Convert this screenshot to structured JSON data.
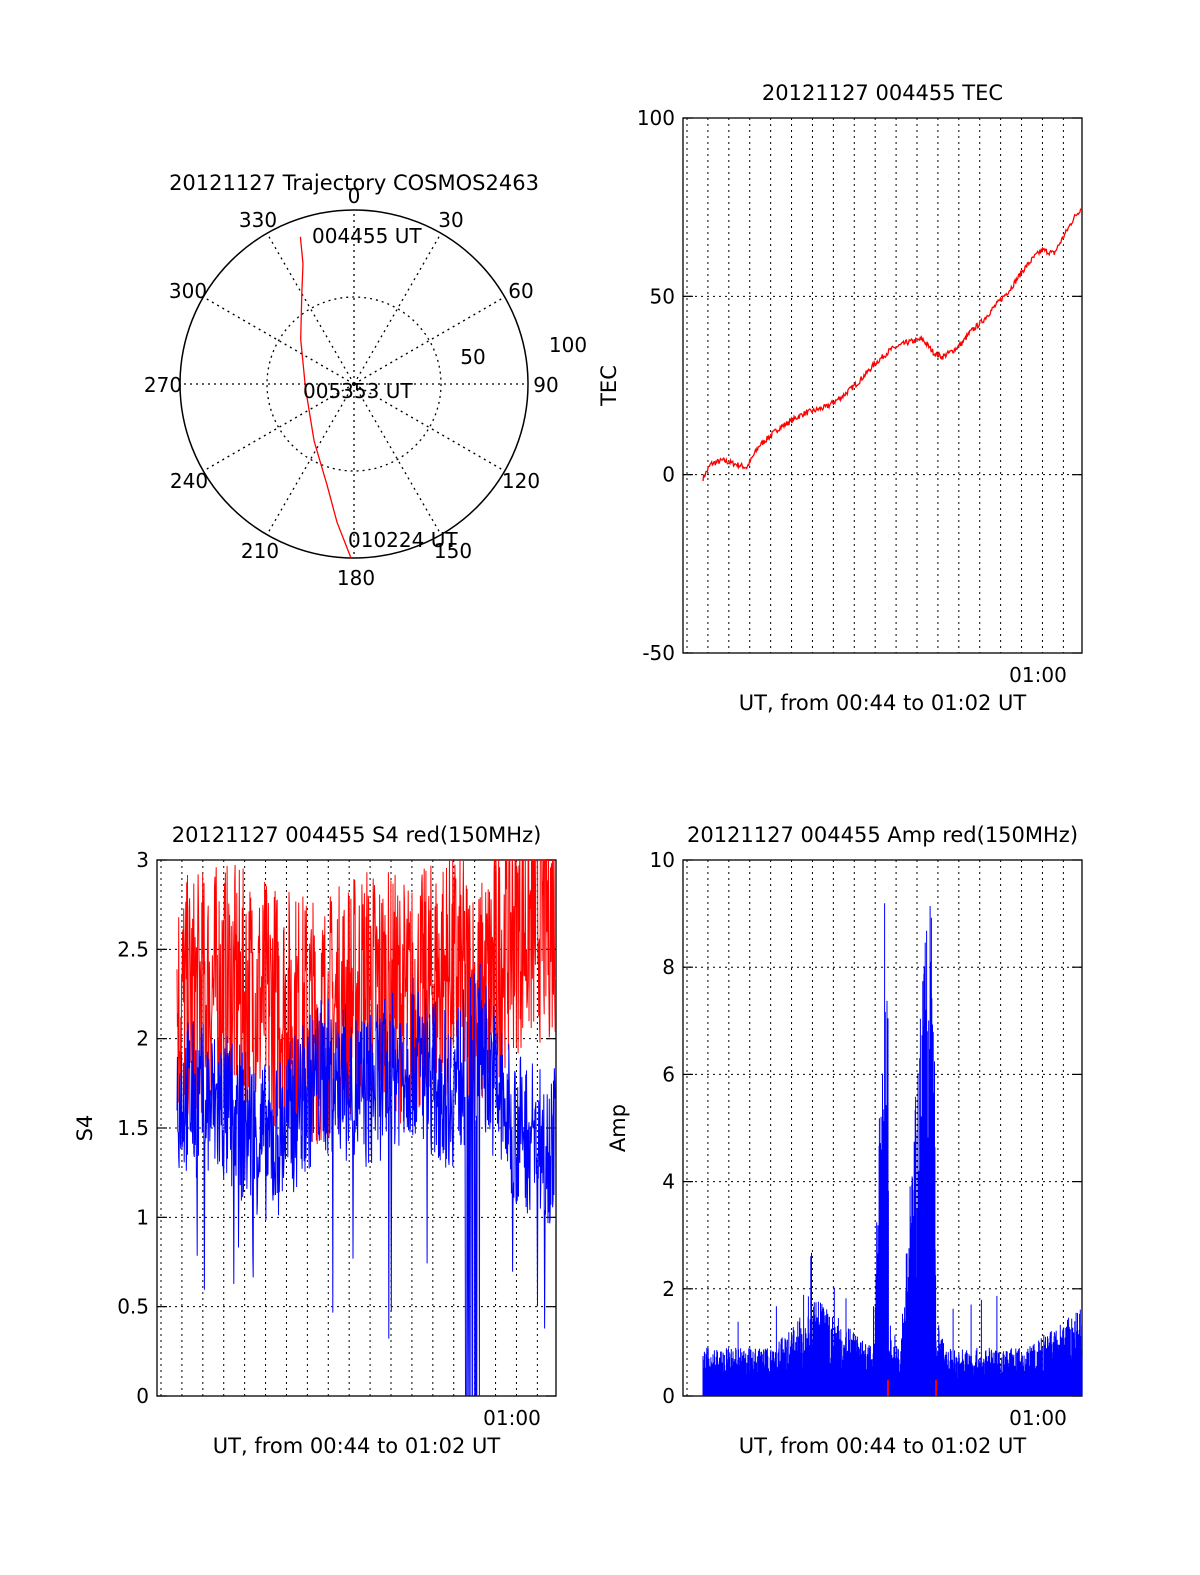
{
  "chart_data": [
    {
      "panel": "trajectory",
      "type": "polar",
      "title": "20121127 Trajectory COSMOS2463",
      "azimuth_labels": [
        "0",
        "30",
        "60",
        "90",
        "120",
        "150",
        "180",
        "210",
        "240",
        "270",
        "300",
        "330"
      ],
      "radial_labels": [
        "50",
        "100"
      ],
      "rlim": [
        0,
        100
      ],
      "grid": "dotted",
      "annotations": [
        {
          "text": "004455 UT"
        },
        {
          "text": "005353 UT"
        },
        {
          "text": "010224 UT"
        }
      ],
      "trajectory": {
        "color": "#ff0000",
        "points": [
          {
            "az": 340,
            "zenith": 90
          },
          {
            "az": 337,
            "zenith": 75
          },
          {
            "az": 330,
            "zenith": 60
          },
          {
            "az": 310,
            "zenith": 40
          },
          {
            "az": 265,
            "zenith": 28
          },
          {
            "az": 215,
            "zenith": 40
          },
          {
            "az": 195,
            "zenith": 60
          },
          {
            "az": 187,
            "zenith": 80
          },
          {
            "az": 181,
            "zenith": 100
          }
        ]
      }
    },
    {
      "panel": "tec",
      "type": "line",
      "title": "20121127 004455 TEC",
      "ylabel": "TEC",
      "xlabel": "UT, from 00:44 to 01:02 UT",
      "ylim": [
        -50,
        100
      ],
      "yticks": [
        "-50",
        "0",
        "50",
        "100"
      ],
      "xtick_label": "01:00",
      "grid": "dotted",
      "series": [
        {
          "color": "#ff0000",
          "x": [
            0.05,
            0.07,
            0.1,
            0.13,
            0.16,
            0.19,
            0.21,
            0.24,
            0.27,
            0.3,
            0.33,
            0.36,
            0.4,
            0.44,
            0.48,
            0.52,
            0.56,
            0.6,
            0.63,
            0.65,
            0.68,
            0.7,
            0.72,
            0.75,
            0.78,
            0.82,
            0.85,
            0.88,
            0.9,
            0.93,
            0.96,
            0.98,
            1.0
          ],
          "y": [
            -1,
            3,
            4,
            3,
            2,
            8,
            10,
            13,
            15,
            17,
            18,
            19,
            22,
            26,
            31,
            35,
            37,
            38,
            34,
            33,
            35,
            37,
            40,
            43,
            47,
            52,
            57,
            61,
            63,
            62,
            68,
            72,
            75
          ]
        }
      ]
    },
    {
      "panel": "s4",
      "type": "line",
      "title": "20121127 004455 S4 red(150MHz)",
      "ylabel": "S4",
      "xlabel": "UT, from 00:44 to 01:02 UT",
      "ylim": [
        0,
        3
      ],
      "yticks": [
        "0",
        "0.5",
        "1",
        "1.5",
        "2",
        "2.5",
        "3"
      ],
      "xtick_label": "01:00",
      "grid": "dotted",
      "series": [
        {
          "color": "#ff0000",
          "x": [
            0,
            0.12,
            0.25,
            0.38,
            0.5,
            0.62,
            0.72,
            0.8,
            0.88,
            1.0
          ],
          "y": [
            2.2,
            2.3,
            2.2,
            2.1,
            2.3,
            2.2,
            2.4,
            2.2,
            2.6,
            2.7
          ]
        },
        {
          "color": "#0000ff",
          "x": [
            0,
            0.12,
            0.25,
            0.38,
            0.5,
            0.62,
            0.72,
            0.8,
            0.88,
            1.0
          ],
          "y": [
            1.7,
            1.6,
            1.4,
            1.8,
            1.7,
            1.9,
            1.7,
            2.0,
            1.5,
            1.4
          ]
        }
      ]
    },
    {
      "panel": "amp",
      "type": "line",
      "title": "20121127 004455 Amp red(150MHz)",
      "ylabel": "Amp",
      "xlabel": "UT, from 00:44 to 01:02 UT",
      "ylim": [
        0,
        10
      ],
      "yticks": [
        "0",
        "2",
        "4",
        "6",
        "8",
        "10"
      ],
      "xtick_label": "01:00",
      "grid": "dotted",
      "series": [
        {
          "color": "#0000ff",
          "x": [
            0,
            0.18,
            0.3,
            0.45,
            0.488,
            0.49,
            0.52,
            0.61,
            0.615,
            0.64,
            0.85,
            1.0
          ],
          "y": [
            0.6,
            0.6,
            1.2,
            0.6,
            7.9,
            1.0,
            0.6,
            7.5,
            1.0,
            0.6,
            0.6,
            1.1
          ]
        },
        {
          "color": "#ff0000",
          "x": [
            0.488,
            0.615
          ],
          "y": [
            0.3,
            0.3
          ]
        }
      ]
    }
  ]
}
